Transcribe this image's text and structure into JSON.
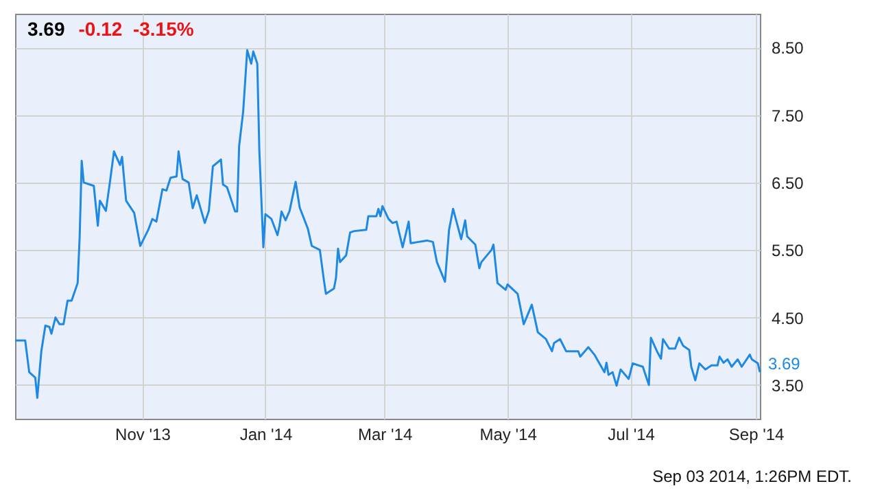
{
  "chart_data": {
    "type": "line",
    "title": "3.69",
    "subtitle": "-0.12  -3.15%",
    "x": [
      "2013-08-30",
      "2013-09-04",
      "2013-09-06",
      "2013-09-09",
      "2013-09-10",
      "2013-09-12",
      "2013-09-14",
      "2013-09-16",
      "2013-09-17",
      "2013-09-19",
      "2013-09-21",
      "2013-09-23",
      "2013-09-25",
      "2013-09-27",
      "2013-09-30",
      "2013-10-01",
      "2013-10-02",
      "2013-10-03",
      "2013-10-08",
      "2013-10-10",
      "2013-10-11",
      "2013-10-14",
      "2013-10-16",
      "2013-10-18",
      "2013-10-21",
      "2013-10-22",
      "2013-10-24",
      "2013-10-28",
      "2013-10-31",
      "2013-11-01",
      "2013-11-04",
      "2013-11-06",
      "2013-11-08",
      "2013-11-11",
      "2013-11-13",
      "2013-11-15",
      "2013-11-18",
      "2013-11-19",
      "2013-11-21",
      "2013-11-24",
      "2013-11-26",
      "2013-11-28",
      "2013-12-02",
      "2013-12-04",
      "2013-12-06",
      "2013-12-10",
      "2013-12-11",
      "2013-12-13",
      "2013-12-17",
      "2013-12-18",
      "2013-12-19",
      "2013-12-21",
      "2013-12-23",
      "2013-12-25",
      "2013-12-26",
      "2013-12-28",
      "2013-12-29",
      "2013-12-31",
      "2014-01-01",
      "2014-01-04",
      "2014-01-07",
      "2014-01-08",
      "2014-01-09",
      "2014-01-11",
      "2014-01-13",
      "2014-01-16",
      "2014-01-18",
      "2014-01-22",
      "2014-01-24",
      "2014-01-28",
      "2014-01-30",
      "2014-01-31",
      "2014-02-04",
      "2014-02-05",
      "2014-02-06",
      "2014-02-07",
      "2014-02-10",
      "2014-02-12",
      "2014-02-14",
      "2014-02-20",
      "2014-02-21",
      "2014-02-25",
      "2014-02-26",
      "2014-02-27",
      "2014-02-28",
      "2014-03-03",
      "2014-03-05",
      "2014-03-07",
      "2014-03-10",
      "2014-03-13",
      "2014-03-14",
      "2014-03-18",
      "2014-03-22",
      "2014-03-25",
      "2014-03-27",
      "2014-03-31",
      "2014-04-02",
      "2014-04-04",
      "2014-04-08",
      "2014-04-10",
      "2014-04-11",
      "2014-04-15",
      "2014-04-17",
      "2014-04-18",
      "2014-04-23",
      "2014-04-24",
      "2014-04-26",
      "2014-04-30",
      "2014-05-01",
      "2014-05-06",
      "2014-05-09",
      "2014-05-13",
      "2014-05-16",
      "2014-05-20",
      "2014-05-21",
      "2014-05-23",
      "2014-05-24",
      "2014-05-27",
      "2014-05-30",
      "2014-06-05",
      "2014-06-06",
      "2014-06-10",
      "2014-06-13",
      "2014-06-18",
      "2014-06-19",
      "2014-06-20",
      "2014-06-22",
      "2014-06-24",
      "2014-06-26",
      "2014-06-30",
      "2014-07-02",
      "2014-07-07",
      "2014-07-10",
      "2014-07-11",
      "2014-07-14",
      "2014-07-16",
      "2014-07-17",
      "2014-07-20",
      "2014-07-23",
      "2014-07-25",
      "2014-07-27",
      "2014-07-30",
      "2014-07-31",
      "2014-08-02",
      "2014-08-04",
      "2014-08-07",
      "2014-08-10",
      "2014-08-13",
      "2014-08-14",
      "2014-08-16",
      "2014-08-18",
      "2014-08-20",
      "2014-08-23",
      "2014-08-25",
      "2014-08-29",
      "2014-08-30",
      "2014-09-02",
      "2014-09-03"
    ],
    "values": [
      4.16,
      4.16,
      3.69,
      3.61,
      3.31,
      4.0,
      4.38,
      4.36,
      4.26,
      4.5,
      4.4,
      4.4,
      4.75,
      4.75,
      5.01,
      5.7,
      6.82,
      6.5,
      6.45,
      5.86,
      6.23,
      6.08,
      6.51,
      6.96,
      6.76,
      6.88,
      6.23,
      6.05,
      5.56,
      5.62,
      5.8,
      5.96,
      5.92,
      6.4,
      6.38,
      6.57,
      6.59,
      6.96,
      6.55,
      6.5,
      6.12,
      6.31,
      5.9,
      6.08,
      6.74,
      6.84,
      6.47,
      6.43,
      6.07,
      6.07,
      7.04,
      7.55,
      8.46,
      8.26,
      8.44,
      8.26,
      6.98,
      5.54,
      6.03,
      5.96,
      5.72,
      5.86,
      6.07,
      5.94,
      6.08,
      6.51,
      6.13,
      5.82,
      5.56,
      5.5,
      5.05,
      4.85,
      4.93,
      5.09,
      5.52,
      5.32,
      5.42,
      5.76,
      5.78,
      5.8,
      6.0,
      6.0,
      6.11,
      6.0,
      6.15,
      5.96,
      5.9,
      5.92,
      5.54,
      5.92,
      5.6,
      5.62,
      5.64,
      5.62,
      5.32,
      5.03,
      5.8,
      6.11,
      5.66,
      5.94,
      5.7,
      5.58,
      5.23,
      5.32,
      5.5,
      5.58,
      5.01,
      4.91,
      4.99,
      4.85,
      4.4,
      4.69,
      4.28,
      4.18,
      4.12,
      4.0,
      4.12,
      4.18,
      4.0,
      4.0,
      3.92,
      4.06,
      3.95,
      3.69,
      3.83,
      3.65,
      3.69,
      3.49,
      3.73,
      3.59,
      3.82,
      3.77,
      3.5,
      4.2,
      4.0,
      3.89,
      4.18,
      4.04,
      4.04,
      4.2,
      4.08,
      4.02,
      3.77,
      3.57,
      3.82,
      3.73,
      3.79,
      3.79,
      3.92,
      3.83,
      3.88,
      3.77,
      3.88,
      3.77,
      3.95,
      3.88,
      3.82,
      3.69
    ],
    "color": "#1e88e5",
    "xlim": [
      "2013-08-30",
      "2014-09-03"
    ],
    "xticks": [
      {
        "value": "2013-11-01",
        "label": "Nov '13"
      },
      {
        "value": "2014-01-01",
        "label": "Jan '14"
      },
      {
        "value": "2014-03-01",
        "label": "Mar '14"
      },
      {
        "value": "2014-05-01",
        "label": "May '14"
      },
      {
        "value": "2014-07-01",
        "label": "Jul '14"
      },
      {
        "value": "2014-09-01",
        "label": "Sep '14"
      }
    ],
    "ylim": [
      3.0,
      9.0
    ],
    "yticks": [
      {
        "value": 3.5,
        "label": "3.50"
      },
      {
        "value": 4.5,
        "label": "4.50"
      },
      {
        "value": 5.5,
        "label": "5.50"
      },
      {
        "value": 6.5,
        "label": "6.50"
      },
      {
        "value": 7.5,
        "label": "7.50"
      },
      {
        "value": 8.5,
        "label": "8.50"
      }
    ],
    "grid": true,
    "annotations": [
      {
        "text": "3.69",
        "x": "2014-09-03",
        "y": 3.69
      },
      "Sep 03 2014, 1:26PM EDT."
    ]
  }
}
